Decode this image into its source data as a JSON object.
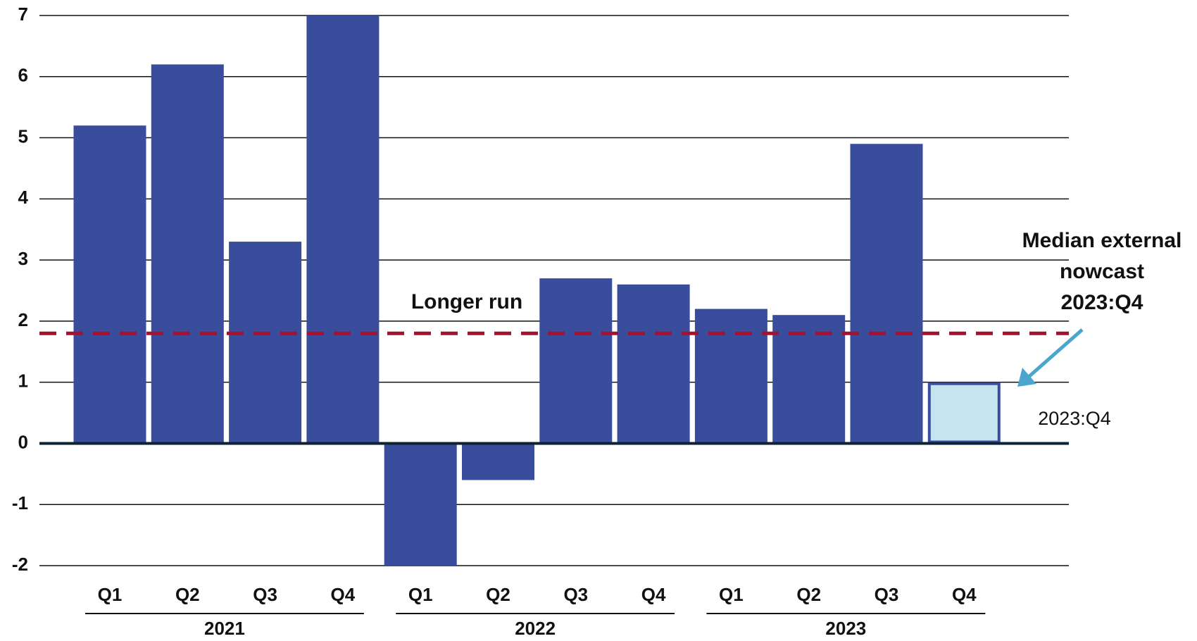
{
  "chart_data": {
    "type": "bar",
    "categories": [
      "Q1",
      "Q2",
      "Q3",
      "Q4",
      "Q1",
      "Q2",
      "Q3",
      "Q4",
      "Q1",
      "Q2",
      "Q3",
      "Q4"
    ],
    "years": [
      "2021",
      "2022",
      "2023"
    ],
    "values": [
      5.2,
      6.2,
      3.3,
      7.0,
      -2.0,
      -0.6,
      2.7,
      2.6,
      2.2,
      2.1,
      4.9,
      1.0
    ],
    "colors": [
      "#3a4d9c",
      "#3a4d9c",
      "#3a4d9c",
      "#3a4d9c",
      "#3a4d9c",
      "#3a4d9c",
      "#3a4d9c",
      "#3a4d9c",
      "#3a4d9c",
      "#3a4d9c",
      "#3a4d9c",
      "#c5e4f0"
    ],
    "edge_color": "#3a4d9c",
    "ylim": [
      -2,
      7
    ],
    "yticks": [
      -2,
      -1,
      0,
      1,
      2,
      3,
      4,
      5,
      6,
      7
    ],
    "grid": true,
    "reference_line": {
      "value": 1.8,
      "label": "Longer run",
      "color": "#a8102e"
    },
    "annotation": {
      "lines": [
        "Median external",
        "nowcast",
        "2023:Q4"
      ],
      "color": "#4aa6cc"
    },
    "bar_label": {
      "text": "2023:Q4",
      "color": "#3a4d9c"
    }
  }
}
